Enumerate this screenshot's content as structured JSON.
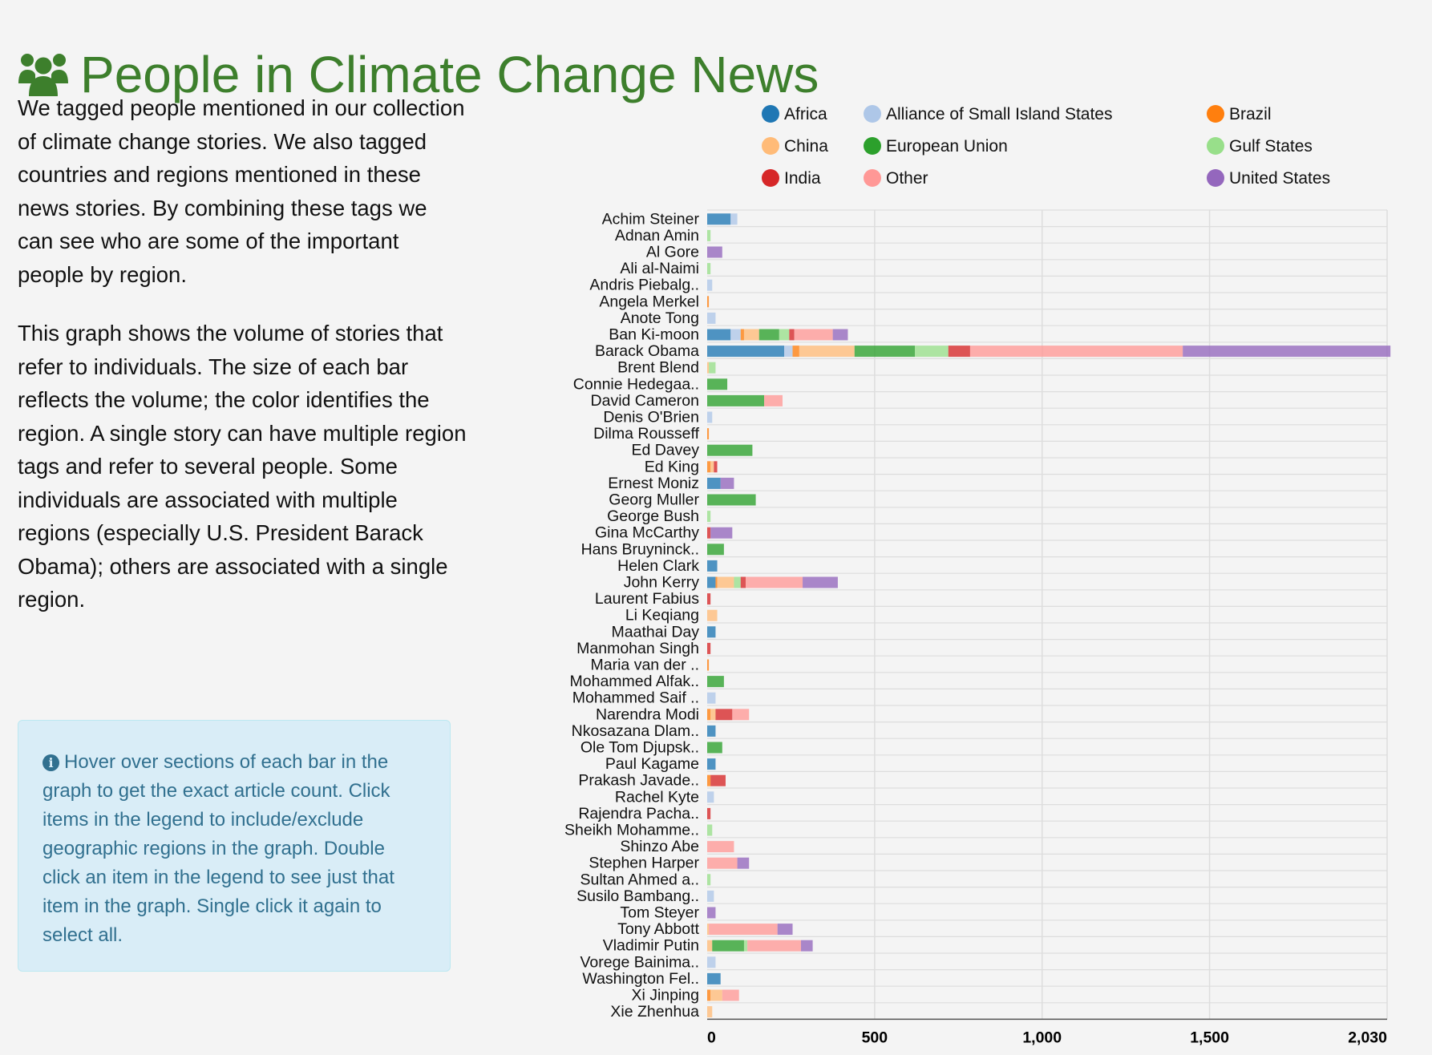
{
  "header": {
    "title": "People in Climate Change News",
    "icon": "users-icon"
  },
  "description": [
    "We tagged people mentioned in our collection of climate change stories. We also tagged countries and regions mentioned in these news stories. By combining these tags we can see who are some of the important people by region.",
    "This graph shows the volume of stories that refer to individuals. The size of each bar reflects the volume; the color identifies the region. A single story can have multiple region tags and refer to several people. Some individuals are associated with multiple regions (especially U.S. President Barack Obama); others are associated with a single region."
  ],
  "info": {
    "icon": "info-circle-icon",
    "text": "Hover over sections of each bar in the graph to get the exact article count. Click items in the legend to include/exclude geographic regions in the graph. Double click an item in the legend to see just that item in the graph. Single click it again to select all."
  },
  "chart_data": {
    "type": "bar",
    "orientation": "horizontal",
    "stacked": true,
    "grid": true,
    "legend_position": "top",
    "xlim": [
      0,
      2030
    ],
    "x_ticks": [
      "0",
      "500",
      "1,000",
      "1,500",
      "2,030"
    ],
    "series": [
      {
        "name": "Africa",
        "color": "#1f77b4"
      },
      {
        "name": "Alliance of Small Island States",
        "color": "#aec7e8"
      },
      {
        "name": "Brazil",
        "color": "#ff7f0e"
      },
      {
        "name": "China",
        "color": "#ffbb78"
      },
      {
        "name": "European Union",
        "color": "#2ca02c"
      },
      {
        "name": "Gulf States",
        "color": "#98df8a"
      },
      {
        "name": "India",
        "color": "#d62728"
      },
      {
        "name": "Other",
        "color": "#ff9896"
      },
      {
        "name": "United States",
        "color": "#9467bd"
      }
    ],
    "categories": [
      "Achim Steiner",
      "Adnan Amin",
      "Al Gore",
      "Ali al-Naimi",
      "Andris Piebalg..",
      "Angela Merkel",
      "Anote Tong",
      "Ban Ki-moon",
      "Barack Obama",
      "Brent Blend",
      "Connie Hedegaa..",
      "David Cameron",
      "Denis O'Brien",
      "Dilma Rousseff",
      "Ed Davey",
      "Ed King",
      "Ernest Moniz",
      "Georg Muller",
      "George Bush",
      "Gina McCarthy",
      "Hans Bruyninck..",
      "Helen Clark",
      "John Kerry",
      "Laurent Fabius",
      "Li Keqiang",
      "Maathai Day",
      "Manmohan Singh",
      "Maria van der ..",
      "Mohammed Alfak..",
      "Mohammed Saif ..",
      "Narendra Modi",
      "Nkosazana Dlam..",
      "Ole Tom Djupsk..",
      "Paul Kagame",
      "Prakash Javade..",
      "Rachel Kyte",
      "Rajendra Pacha..",
      "Sheikh Mohamme..",
      "Shinzo Abe",
      "Stephen Harper",
      "Sultan Ahmed a..",
      "Susilo Bambang..",
      "Tom Steyer",
      "Tony Abbott",
      "Vladimir Putin",
      "Vorege Bainima..",
      "Washington Fel..",
      "Xi Jinping",
      "Xie Zhenhua"
    ],
    "values": [
      [
        70,
        20,
        0,
        0,
        0,
        0,
        0,
        0,
        0
      ],
      [
        0,
        0,
        0,
        0,
        0,
        10,
        0,
        0,
        0
      ],
      [
        0,
        0,
        0,
        0,
        0,
        0,
        0,
        0,
        45
      ],
      [
        0,
        0,
        0,
        0,
        0,
        10,
        0,
        0,
        0
      ],
      [
        0,
        15,
        0,
        0,
        0,
        0,
        0,
        0,
        0
      ],
      [
        0,
        0,
        5,
        0,
        0,
        0,
        0,
        0,
        0
      ],
      [
        0,
        25,
        0,
        0,
        0,
        0,
        0,
        0,
        0
      ],
      [
        70,
        30,
        10,
        45,
        60,
        30,
        15,
        115,
        45
      ],
      [
        230,
        25,
        20,
        165,
        180,
        100,
        65,
        635,
        620
      ],
      [
        0,
        0,
        0,
        5,
        0,
        20,
        0,
        0,
        0
      ],
      [
        0,
        0,
        0,
        0,
        60,
        0,
        0,
        0,
        0
      ],
      [
        0,
        0,
        0,
        0,
        170,
        0,
        0,
        55,
        0
      ],
      [
        0,
        15,
        0,
        0,
        0,
        0,
        0,
        0,
        0
      ],
      [
        0,
        0,
        5,
        0,
        0,
        0,
        0,
        0,
        0
      ],
      [
        0,
        0,
        0,
        0,
        135,
        0,
        0,
        0,
        0
      ],
      [
        0,
        0,
        10,
        10,
        0,
        0,
        10,
        0,
        0
      ],
      [
        40,
        0,
        0,
        0,
        0,
        0,
        0,
        0,
        40
      ],
      [
        0,
        0,
        0,
        0,
        145,
        0,
        0,
        0,
        0
      ],
      [
        0,
        0,
        0,
        0,
        0,
        10,
        0,
        0,
        0
      ],
      [
        0,
        0,
        0,
        0,
        0,
        0,
        10,
        0,
        65
      ],
      [
        0,
        0,
        0,
        0,
        50,
        0,
        0,
        0,
        0
      ],
      [
        30,
        0,
        0,
        0,
        0,
        0,
        0,
        0,
        0
      ],
      [
        25,
        0,
        5,
        50,
        0,
        20,
        15,
        170,
        105
      ],
      [
        0,
        0,
        0,
        0,
        0,
        0,
        10,
        0,
        0
      ],
      [
        0,
        0,
        0,
        30,
        0,
        0,
        0,
        0,
        0
      ],
      [
        25,
        0,
        0,
        0,
        0,
        0,
        0,
        0,
        0
      ],
      [
        0,
        0,
        0,
        0,
        0,
        0,
        10,
        0,
        0
      ],
      [
        0,
        0,
        5,
        0,
        0,
        0,
        0,
        0,
        0
      ],
      [
        0,
        0,
        0,
        0,
        50,
        0,
        0,
        0,
        0
      ],
      [
        0,
        25,
        0,
        0,
        0,
        0,
        0,
        0,
        0
      ],
      [
        0,
        0,
        10,
        15,
        0,
        0,
        50,
        50,
        0
      ],
      [
        25,
        0,
        0,
        0,
        0,
        0,
        0,
        0,
        0
      ],
      [
        0,
        0,
        0,
        0,
        45,
        0,
        0,
        0,
        0
      ],
      [
        25,
        0,
        0,
        0,
        0,
        0,
        0,
        0,
        0
      ],
      [
        0,
        0,
        10,
        0,
        0,
        0,
        45,
        0,
        0
      ],
      [
        0,
        20,
        0,
        0,
        0,
        0,
        0,
        0,
        0
      ],
      [
        0,
        0,
        0,
        0,
        0,
        0,
        10,
        0,
        0
      ],
      [
        0,
        0,
        0,
        0,
        0,
        15,
        0,
        0,
        0
      ],
      [
        0,
        0,
        0,
        0,
        0,
        0,
        0,
        80,
        0
      ],
      [
        0,
        0,
        0,
        0,
        0,
        0,
        0,
        90,
        35
      ],
      [
        0,
        0,
        0,
        0,
        0,
        10,
        0,
        0,
        0
      ],
      [
        0,
        20,
        0,
        0,
        0,
        0,
        0,
        0,
        0
      ],
      [
        0,
        0,
        0,
        0,
        0,
        0,
        0,
        0,
        25
      ],
      [
        0,
        0,
        0,
        5,
        0,
        0,
        0,
        205,
        45
      ],
      [
        0,
        0,
        0,
        15,
        95,
        10,
        0,
        160,
        35
      ],
      [
        0,
        25,
        0,
        0,
        0,
        0,
        0,
        0,
        0
      ],
      [
        40,
        0,
        0,
        0,
        0,
        0,
        0,
        0,
        0
      ],
      [
        0,
        0,
        10,
        35,
        0,
        0,
        0,
        50,
        0
      ],
      [
        0,
        0,
        0,
        15,
        0,
        0,
        0,
        0,
        0
      ]
    ]
  }
}
